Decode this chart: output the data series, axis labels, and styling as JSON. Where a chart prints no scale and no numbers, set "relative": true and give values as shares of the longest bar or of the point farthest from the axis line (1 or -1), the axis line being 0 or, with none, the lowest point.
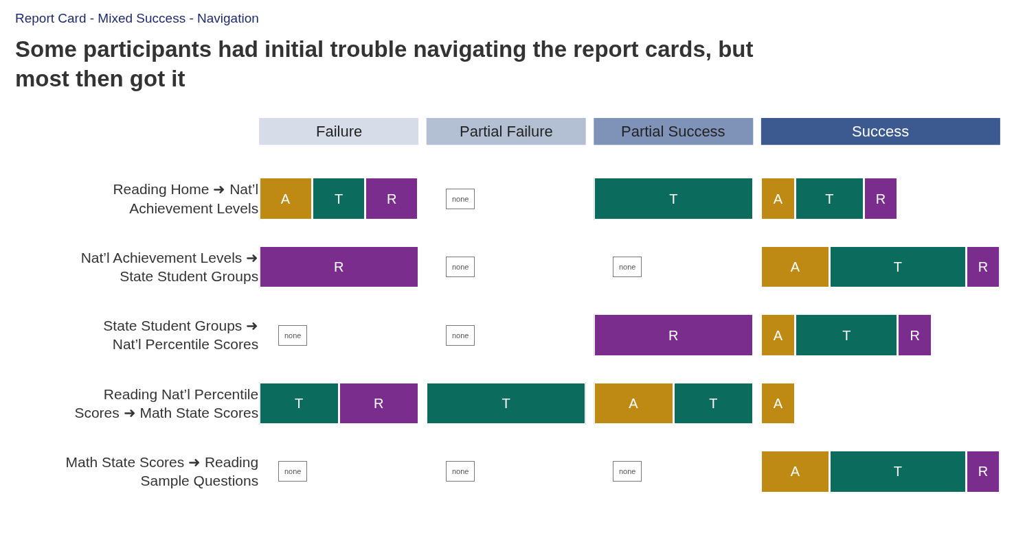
{
  "chart_data": [
    {
      "type": "bar",
      "orientation": "horizontal",
      "stacked": true,
      "relative": true,
      "tick_labels": "y",
      "subtitle": "Report Card - Mixed Success - Navigation",
      "title": "Some participants had initial trouble navigating the report cards, but most then got it",
      "xlabel": "Failure",
      "categories": [
        "Reading Home ➜ Nat’l Achievement Levels",
        "Nat’l Achievement Levels ➜ State Student Groups",
        "State Student Groups ➜ Nat’l Percentile Scores",
        "Reading Nat’l Percentile Scores ➜ Math State Scores",
        "Math State Scores ➜ Reading Sample Questions"
      ],
      "series": [
        {
          "name": "A",
          "color": "#bf8a14",
          "values": [
            0.333,
            null,
            null,
            null,
            null
          ]
        },
        {
          "name": "T",
          "color": "#0b6b5c",
          "values": [
            0.333,
            null,
            null,
            0.5,
            null
          ]
        },
        {
          "name": "R",
          "color": "#7b2d8e",
          "values": [
            0.333,
            1,
            null,
            0.5,
            null
          ]
        }
      ],
      "annotations": [
        {
          "text": "none",
          "y": "State Student Groups ➜ Nat’l Percentile Scores"
        },
        {
          "text": "none",
          "y": "Math State Scores ➜ Reading Sample Questions"
        }
      ]
    },
    {
      "type": "bar",
      "orientation": "horizontal",
      "stacked": true,
      "relative": true,
      "tick_labels": false,
      "xlabel": "Partial Failure",
      "categories": [
        "Reading Home ➜ Nat’l Achievement Levels",
        "Nat’l Achievement Levels ➜ State Student Groups",
        "State Student Groups ➜ Nat’l Percentile Scores",
        "Reading Nat’l Percentile Scores ➜ Math State Scores",
        "Math State Scores ➜ Reading Sample Questions"
      ],
      "series": [
        {
          "name": "T",
          "color": "#0b6b5c",
          "values": [
            null,
            null,
            null,
            1,
            null
          ]
        }
      ],
      "annotations": [
        {
          "text": "none",
          "y": "Reading Home ➜ Nat’l Achievement Levels"
        },
        {
          "text": "none",
          "y": "Nat’l Achievement Levels ➜ State Student Groups"
        },
        {
          "text": "none",
          "y": "State Student Groups ➜ Nat’l Percentile Scores"
        },
        {
          "text": "none",
          "y": "Math State Scores ➜ Reading Sample Questions"
        }
      ]
    },
    {
      "type": "bar",
      "orientation": "horizontal",
      "stacked": true,
      "relative": true,
      "tick_labels": false,
      "xlabel": "Partial Success",
      "categories": [
        "Reading Home ➜ Nat’l Achievement Levels",
        "Nat’l Achievement Levels ➜ State Student Groups",
        "State Student Groups ➜ Nat’l Percentile Scores",
        "Reading Nat’l Percentile Scores ➜ Math State Scores",
        "Math State Scores ➜ Reading Sample Questions"
      ],
      "series": [
        {
          "name": "A",
          "color": "#bf8a14",
          "values": [
            null,
            null,
            null,
            0.5,
            null
          ]
        },
        {
          "name": "T",
          "color": "#0b6b5c",
          "values": [
            1,
            null,
            null,
            0.5,
            null
          ]
        },
        {
          "name": "R",
          "color": "#7b2d8e",
          "values": [
            null,
            null,
            1,
            null,
            null
          ]
        }
      ],
      "annotations": [
        {
          "text": "none",
          "y": "Nat’l Achievement Levels ➜ State Student Groups"
        },
        {
          "text": "none",
          "y": "Math State Scores ➜ Reading Sample Questions"
        }
      ]
    },
    {
      "type": "bar",
      "orientation": "horizontal",
      "stacked": true,
      "relative": true,
      "tick_labels": false,
      "xlabel": "Success",
      "categories": [
        "Reading Home ➜ Nat’l Achievement Levels",
        "Nat’l Achievement Levels ➜ State Student Groups",
        "State Student Groups ➜ Nat’l Percentile Scores",
        "Reading Nat’l Percentile Scores ➜ Math State Scores",
        "Math State Scores ➜ Reading Sample Questions"
      ],
      "series": [
        {
          "name": "A",
          "color": "#bf8a14",
          "values": [
            0.143,
            0.286,
            0.143,
            0.143,
            0.286
          ]
        },
        {
          "name": "T",
          "color": "#0b6b5c",
          "values": [
            0.286,
            0.571,
            0.429,
            null,
            0.571
          ]
        },
        {
          "name": "R",
          "color": "#7b2d8e",
          "values": [
            0.143,
            0.143,
            0.143,
            null,
            0.143
          ]
        }
      ]
    }
  ]
}
